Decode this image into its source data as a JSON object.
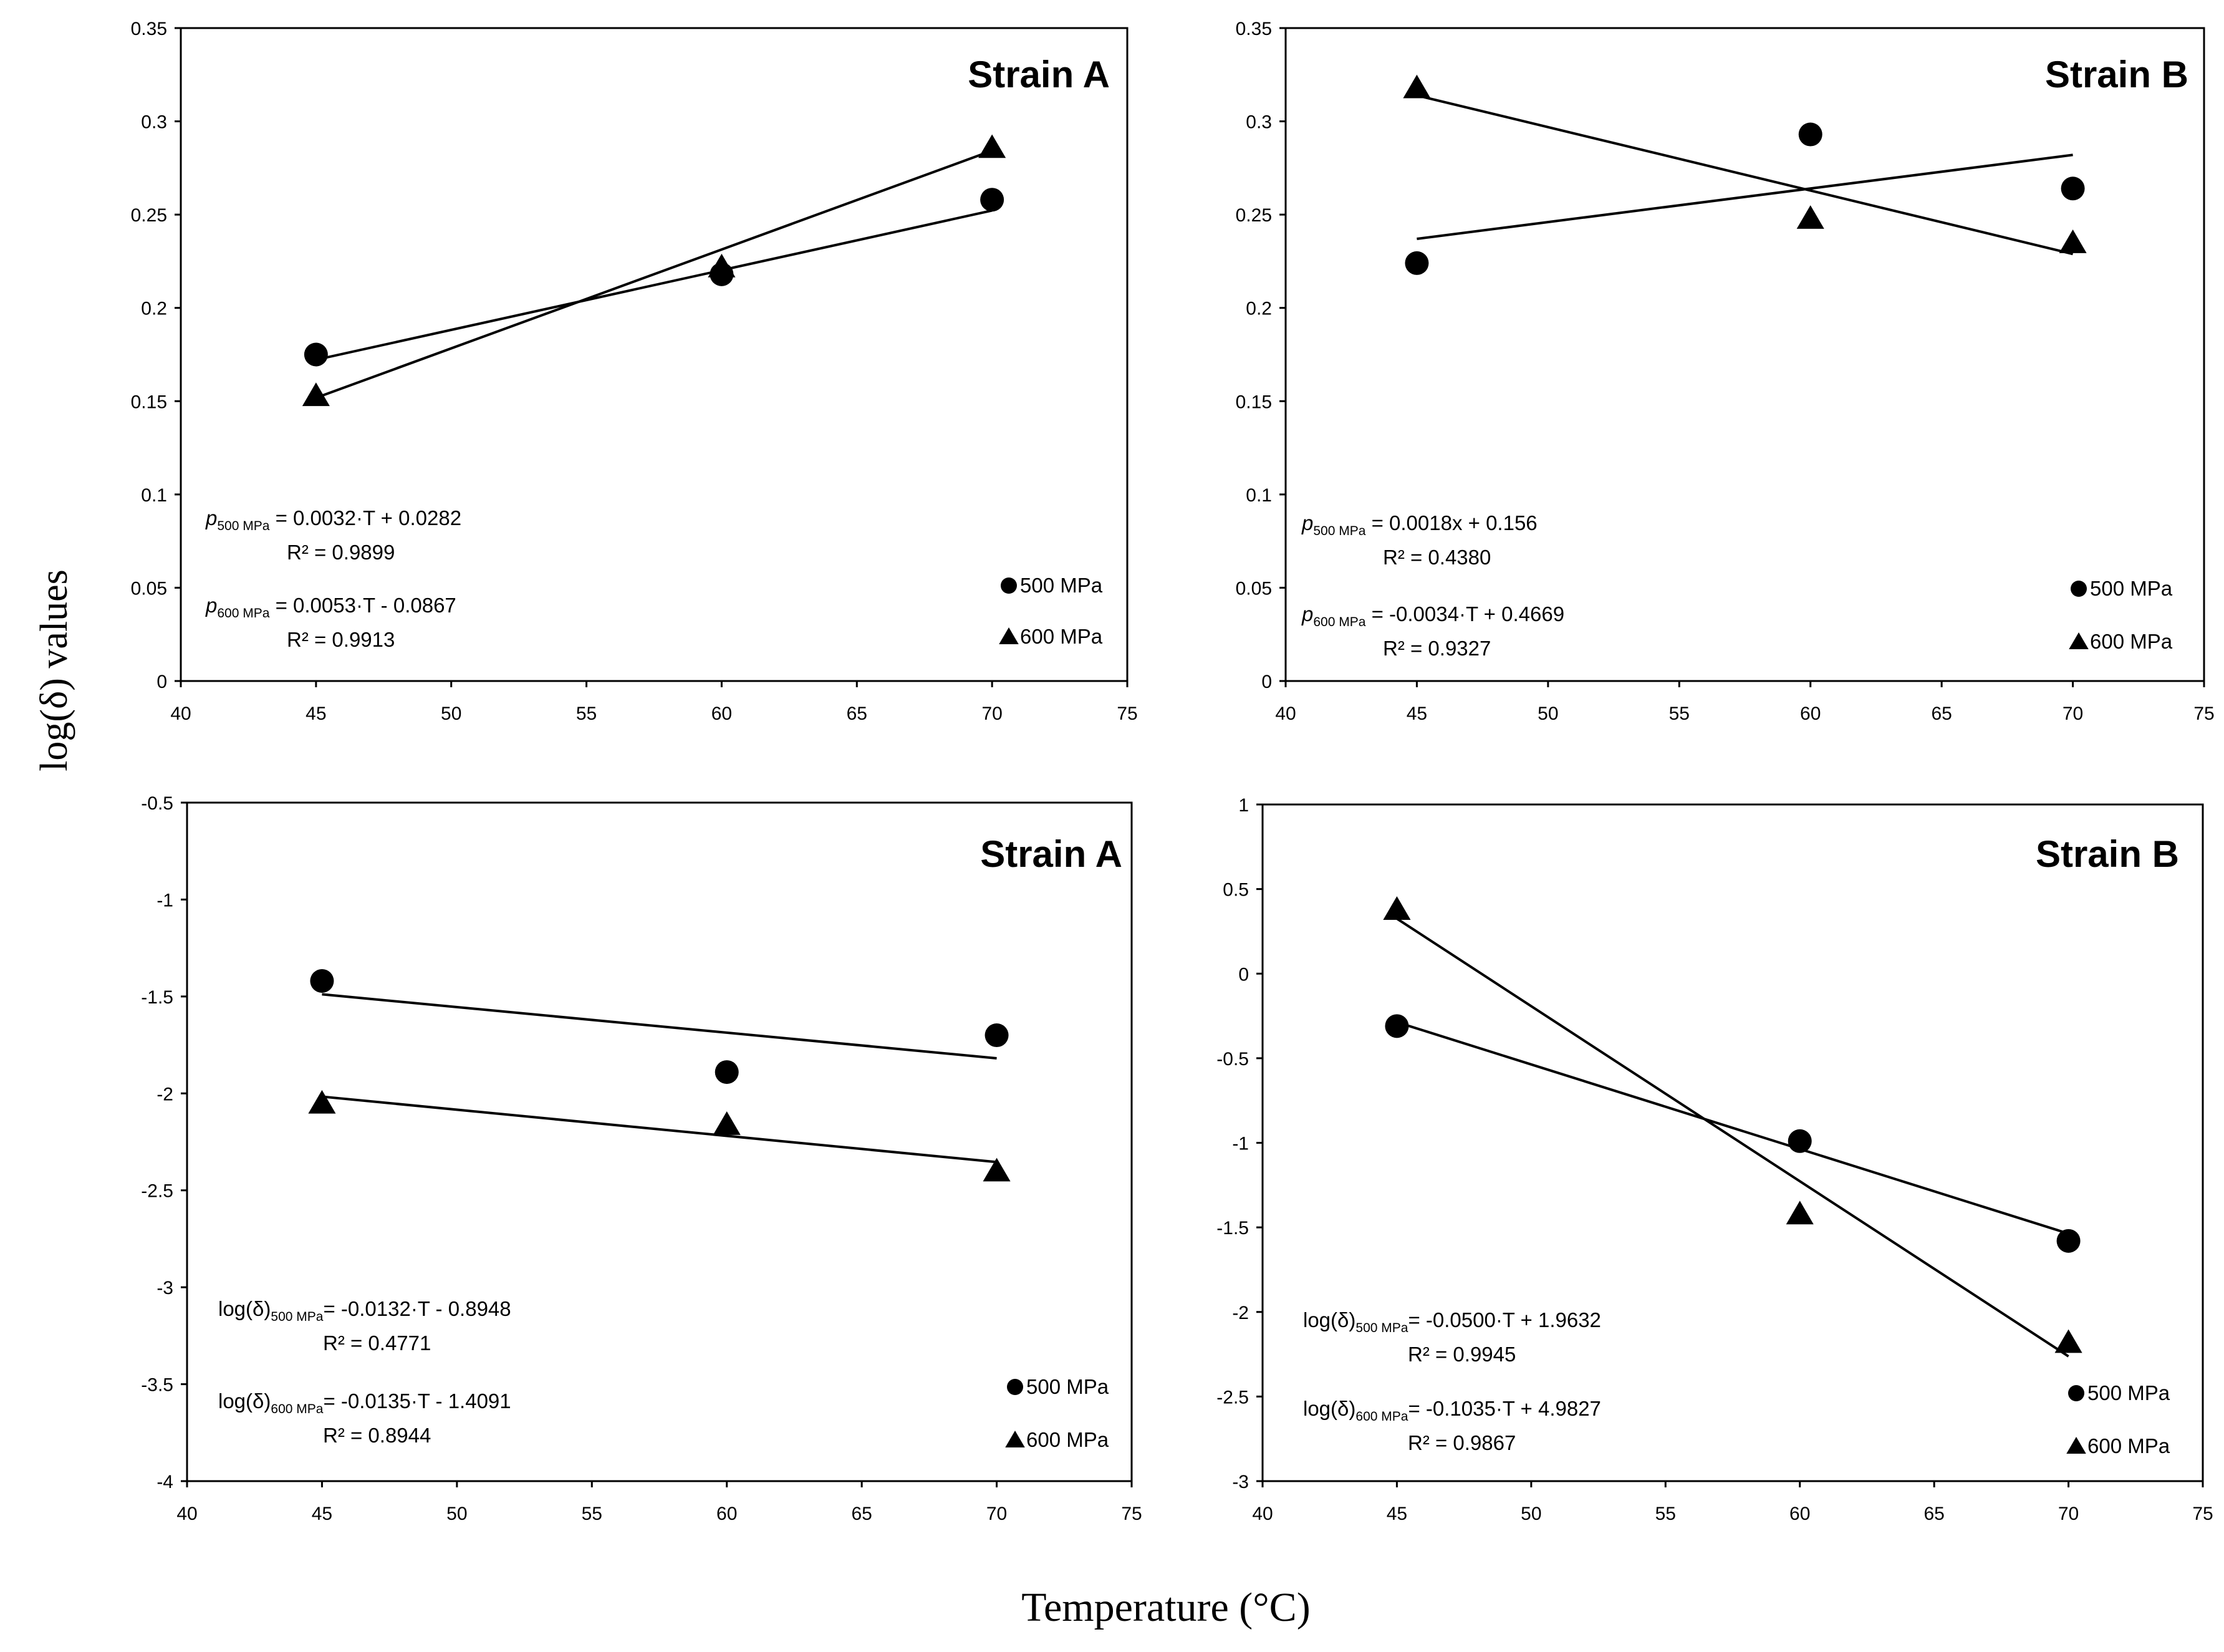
{
  "figure": {
    "ylabel": "log(δ) values",
    "xlabel": "Temperature (°C)"
  },
  "chart_data": [
    {
      "type": "scatter",
      "title": "Strain A",
      "xlabel": "",
      "ylabel": "",
      "xlim": [
        40,
        75
      ],
      "ylim": [
        0,
        0.35
      ],
      "xticks": [
        "40",
        "45",
        "50",
        "55",
        "60",
        "65",
        "70",
        "75"
      ],
      "yticks": [
        "0",
        "0.05",
        "0.1",
        "0.15",
        "0.2",
        "0.25",
        "0.3",
        "0.35"
      ],
      "series": [
        {
          "name": "500 MPa",
          "marker": "circle",
          "x": [
            45,
            60,
            70
          ],
          "y": [
            0.175,
            0.218,
            0.258
          ],
          "fit": [
            [
              45,
              0.1722
            ],
            [
              70,
              0.2522
            ]
          ]
        },
        {
          "name": "600 MPa",
          "marker": "triangle",
          "x": [
            45,
            60,
            70
          ],
          "y": [
            0.153,
            0.222,
            0.286
          ],
          "fit": [
            [
              45,
              0.1518
            ],
            [
              70,
              0.2843
            ]
          ]
        }
      ],
      "equations": [
        {
          "var": "p",
          "sub": "500 MPa",
          "rhs": " = 0.0032·T + 0.0282",
          "r2": "R² = 0.9899"
        },
        {
          "var": "p",
          "sub": "600 MPa",
          "rhs": " = 0.0053·T - 0.0867",
          "r2": "R² = 0.9913"
        }
      ],
      "legend_position": "bottom-right"
    },
    {
      "type": "scatter",
      "title": "Strain B",
      "xlabel": "",
      "ylabel": "",
      "xlim": [
        40,
        75
      ],
      "ylim": [
        0,
        0.35
      ],
      "xticks": [
        "40",
        "45",
        "50",
        "55",
        "60",
        "65",
        "70",
        "75"
      ],
      "yticks": [
        "0",
        "0.05",
        "0.1",
        "0.15",
        "0.2",
        "0.25",
        "0.3",
        "0.35"
      ],
      "series": [
        {
          "name": "500 MPa",
          "marker": "circle",
          "x": [
            45,
            60,
            70
          ],
          "y": [
            0.224,
            0.293,
            0.264
          ],
          "fit": [
            [
              45,
              0.237
            ],
            [
              70,
              0.282
            ]
          ]
        },
        {
          "name": "600 MPa",
          "marker": "triangle",
          "x": [
            45,
            60,
            70
          ],
          "y": [
            0.318,
            0.248,
            0.235
          ],
          "fit": [
            [
              45,
              0.3139
            ],
            [
              70,
              0.2289
            ]
          ]
        }
      ],
      "equations": [
        {
          "var": "p",
          "sub": "500 MPa",
          "rhs": " = 0.0018x + 0.156",
          "r2": "R² = 0.4380"
        },
        {
          "var": "p",
          "sub": "600 MPa",
          "rhs": " = -0.0034·T + 0.4669",
          "r2": "R² = 0.9327"
        }
      ],
      "legend_position": "bottom-right"
    },
    {
      "type": "scatter",
      "title": "Strain A",
      "xlabel": "",
      "ylabel": "",
      "xlim": [
        40,
        75
      ],
      "ylim": [
        -4,
        -0.5
      ],
      "xticks": [
        "40",
        "45",
        "50",
        "55",
        "60",
        "65",
        "70",
        "75"
      ],
      "yticks": [
        "-4",
        "-3.5",
        "-3",
        "-2.5",
        "-2",
        "-1.5",
        "-1",
        "-0.5"
      ],
      "series": [
        {
          "name": "500 MPa",
          "marker": "circle",
          "x": [
            45,
            60,
            70
          ],
          "y": [
            -1.42,
            -1.89,
            -1.7
          ],
          "fit": [
            [
              45,
              -1.4888
            ],
            [
              70,
              -1.8188
            ]
          ]
        },
        {
          "name": "600 MPa",
          "marker": "triangle",
          "x": [
            45,
            60,
            70
          ],
          "y": [
            -2.05,
            -2.16,
            -2.4
          ],
          "fit": [
            [
              45,
              -2.0166
            ],
            [
              70,
              -2.3541
            ]
          ]
        }
      ],
      "equations": [
        {
          "var": "log(δ)",
          "sub": "500 MPa",
          "rhs": "= -0.0132·T - 0.8948",
          "r2": "R² = 0.4771"
        },
        {
          "var": "log(δ)",
          "sub": "600 MPa",
          "rhs": "= -0.0135·T - 1.4091",
          "r2": "R² = 0.8944"
        }
      ],
      "legend_position": "bottom-right"
    },
    {
      "type": "scatter",
      "title": "Strain B",
      "xlabel": "",
      "ylabel": "",
      "xlim": [
        40,
        75
      ],
      "ylim": [
        -3,
        1
      ],
      "xticks": [
        "40",
        "45",
        "50",
        "55",
        "60",
        "65",
        "70",
        "75"
      ],
      "yticks": [
        "-3",
        "-2.5",
        "-2",
        "-1.5",
        "-1",
        "-0.5",
        "0",
        "0.5",
        "1"
      ],
      "series": [
        {
          "name": "500 MPa",
          "marker": "circle",
          "x": [
            45,
            60,
            70
          ],
          "y": [
            -0.31,
            -0.99,
            -1.58
          ],
          "fit": [
            [
              45,
              -0.2868
            ],
            [
              70,
              -1.5368
            ]
          ]
        },
        {
          "name": "600 MPa",
          "marker": "triangle",
          "x": [
            45,
            60,
            70
          ],
          "y": [
            0.38,
            -1.42,
            -2.18
          ],
          "fit": [
            [
              45,
              0.3252
            ],
            [
              70,
              -2.2623
            ]
          ]
        }
      ],
      "equations": [
        {
          "var": "log(δ)",
          "sub": "500 MPa",
          "rhs": "= -0.0500·T + 1.9632",
          "r2": "R² = 0.9945"
        },
        {
          "var": "log(δ)",
          "sub": "600 MPa",
          "rhs": "= -0.1035·T + 4.9827",
          "r2": "R² = 0.9867"
        }
      ],
      "legend_position": "bottom-right"
    }
  ]
}
